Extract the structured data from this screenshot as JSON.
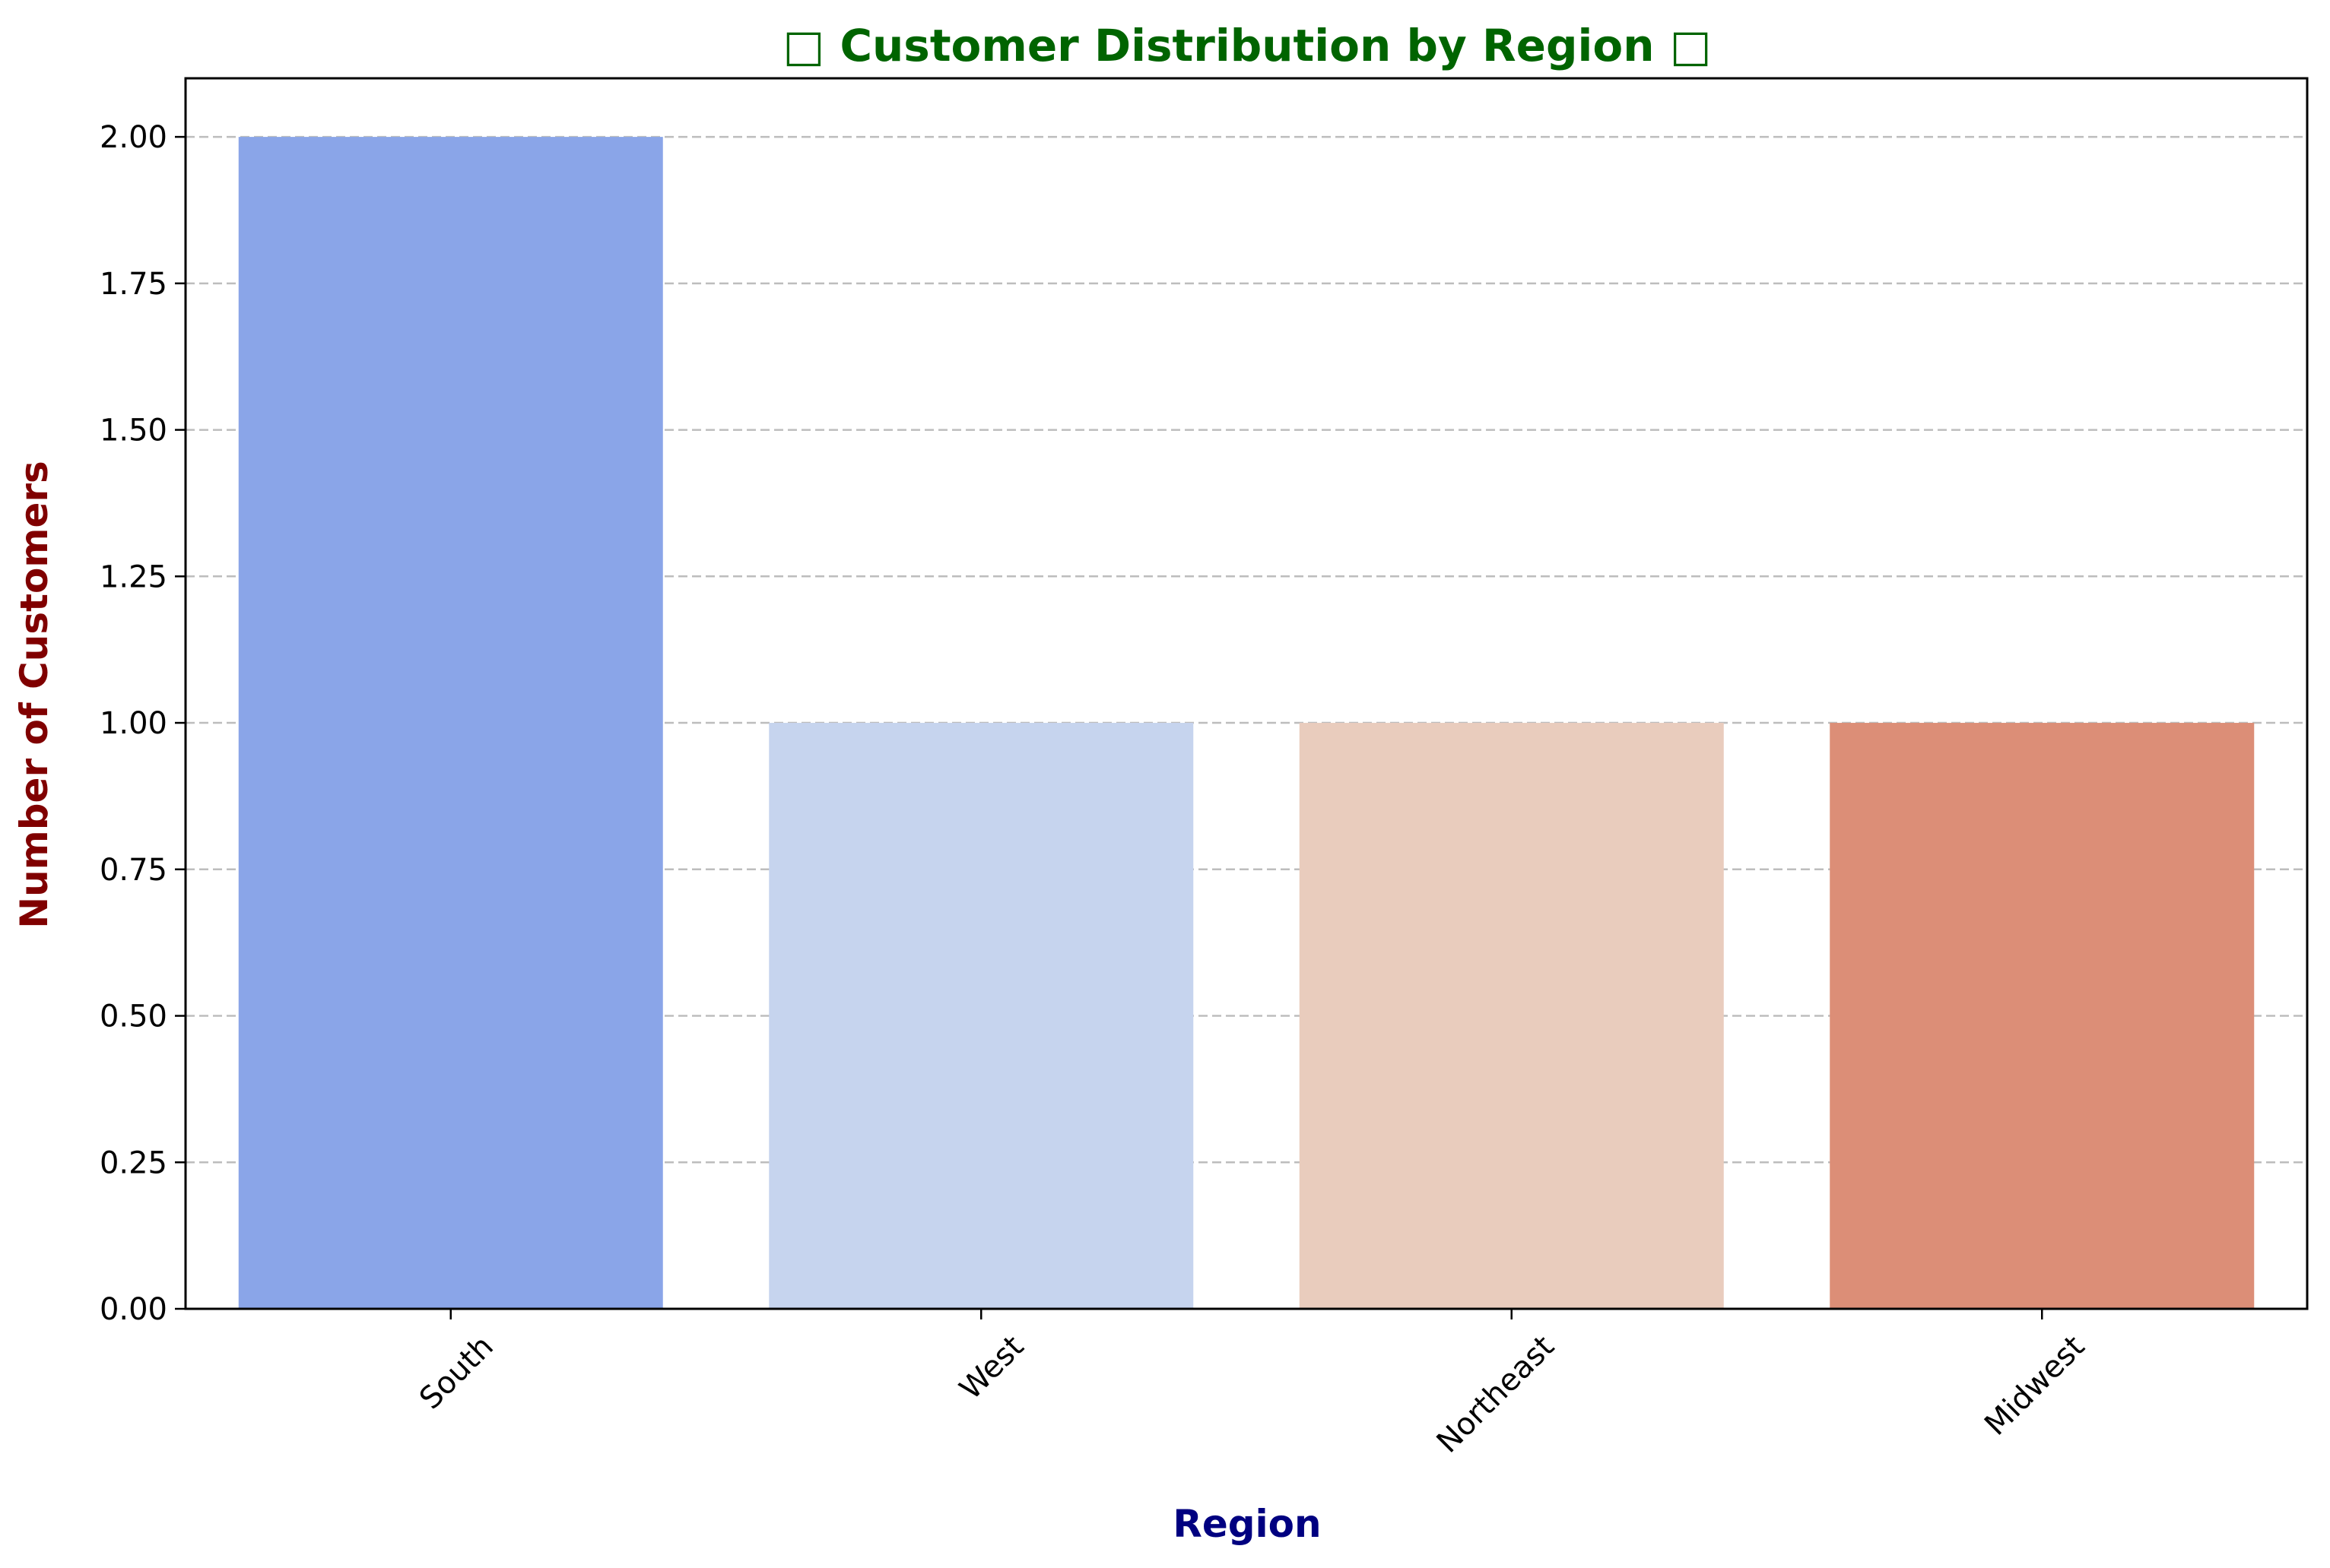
{
  "chart_data": {
    "type": "bar",
    "title": "Customer Distribution by Region",
    "title_icon": "missing-glyph-box",
    "xlabel": "Region",
    "ylabel": "Number of Customers",
    "categories": [
      "South",
      "West",
      "Northeast",
      "Midwest"
    ],
    "values": [
      2,
      1,
      1,
      1
    ],
    "bar_colors": [
      "#8aa5e8",
      "#c6d4ee",
      "#e9ccbd",
      "#dc8e77"
    ],
    "ylim": [
      0,
      2.1
    ],
    "yticks": [
      0,
      0.25,
      0.5,
      0.75,
      1.0,
      1.25,
      1.5,
      1.75,
      2.0
    ],
    "ytick_labels": [
      "0.00",
      "0.25",
      "0.50",
      "0.75",
      "1.00",
      "1.25",
      "1.50",
      "1.75",
      "2.00"
    ],
    "grid": "horizontal-dashed",
    "legend": "none",
    "xtick_rotation": "45-degrees",
    "colors": {
      "title": "#006400",
      "xlabel": "#000080",
      "ylabel": "#800000",
      "grid": "#bdbdbd"
    }
  }
}
